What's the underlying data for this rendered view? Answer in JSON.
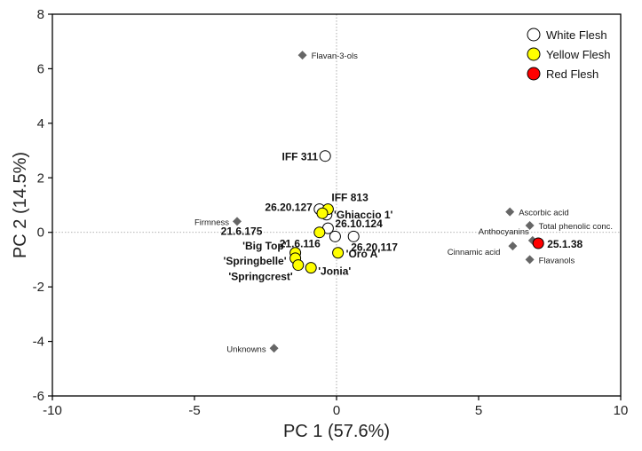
{
  "chart_data": {
    "type": "scatter",
    "title": "",
    "xlabel": "PC 1 (57.6%)",
    "ylabel": "PC 2 (14.5%)",
    "xlim": [
      -10,
      10
    ],
    "ylim": [
      -6,
      8
    ],
    "xticks": [
      -10,
      -5,
      0,
      5,
      10
    ],
    "yticks": [
      -6,
      -4,
      -2,
      0,
      2,
      4,
      6,
      8
    ],
    "reference_lines": {
      "x": 0,
      "y": 0,
      "style": "dotted"
    },
    "legend": {
      "position": "top-right",
      "items": [
        {
          "name": "White Flesh",
          "color": "#ffffff"
        },
        {
          "name": "Yellow Flesh",
          "color": "#ffff00"
        },
        {
          "name": "Red Flesh",
          "color": "#ff0000"
        }
      ]
    },
    "series": [
      {
        "name": "White Flesh",
        "color": "#ffffff",
        "points": [
          {
            "label": "IFF 311",
            "x": -0.4,
            "y": 2.8
          },
          {
            "label": "26.20.127",
            "x": -0.6,
            "y": 0.85
          },
          {
            "label": "",
            "x": -0.35,
            "y": 0.65
          },
          {
            "label": "26.10.124",
            "x": -0.3,
            "y": 0.15
          },
          {
            "label": "21.6.175",
            "x": -0.05,
            "y": -0.15
          },
          {
            "label": "26.20.117",
            "x": 0.6,
            "y": -0.15
          }
        ]
      },
      {
        "name": "Yellow Flesh",
        "color": "#ffff00",
        "points": [
          {
            "label": "IFF 813",
            "x": -0.3,
            "y": 0.85
          },
          {
            "label": "'Ghiaccio 1'",
            "x": -0.5,
            "y": 0.7
          },
          {
            "label": "21.6.116",
            "x": -0.6,
            "y": 0.0
          },
          {
            "label": "'Big Top'",
            "x": -1.45,
            "y": -0.75
          },
          {
            "label": "'Springbelle'",
            "x": -1.45,
            "y": -0.95
          },
          {
            "label": "'Springcrest'",
            "x": -1.35,
            "y": -1.2
          },
          {
            "label": "'Jonia'",
            "x": -0.9,
            "y": -1.3
          },
          {
            "label": "'Oro A'",
            "x": 0.05,
            "y": -0.75
          }
        ]
      },
      {
        "name": "Red Flesh",
        "color": "#ff0000",
        "points": [
          {
            "label": "25.1.38",
            "x": 7.1,
            "y": -0.4
          }
        ]
      }
    ],
    "loadings": {
      "marker": "diamond",
      "color": "#666666",
      "points": [
        {
          "label": "Flavan-3-ols",
          "x": -1.2,
          "y": 6.5
        },
        {
          "label": "Firmness",
          "x": -3.5,
          "y": 0.4
        },
        {
          "label": "Unknowns",
          "x": -2.2,
          "y": -4.25
        },
        {
          "label": "Ascorbic acid",
          "x": 6.1,
          "y": 0.75
        },
        {
          "label": "Total phenolic conc.",
          "x": 6.8,
          "y": 0.25
        },
        {
          "label": "Anthocyanins",
          "x": 6.9,
          "y": -0.3
        },
        {
          "label": "Cinnamic acid",
          "x": 6.2,
          "y": -0.5
        },
        {
          "label": "Flavanols",
          "x": 6.8,
          "y": -1.0
        }
      ]
    }
  }
}
